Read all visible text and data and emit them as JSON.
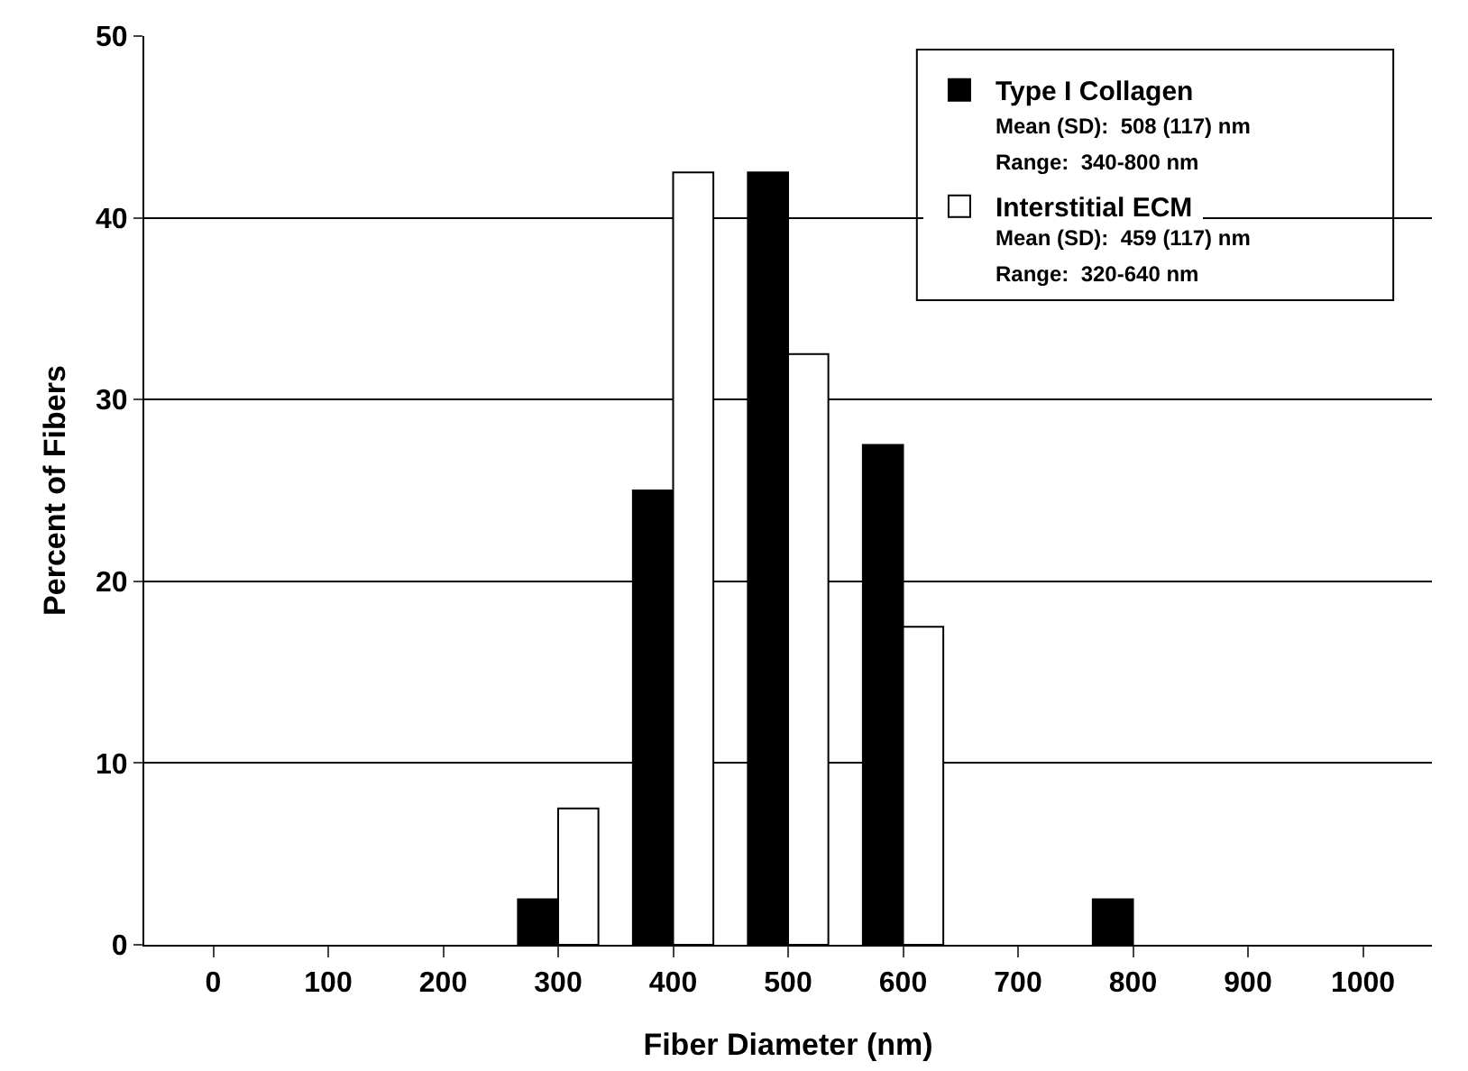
{
  "chart_data": {
    "type": "bar",
    "xlabel": "Fiber Diameter (nm)",
    "ylabel": "Percent of Fibers",
    "categories": [
      "0",
      "100",
      "200",
      "300",
      "400",
      "500",
      "600",
      "700",
      "800",
      "900",
      "1000"
    ],
    "series": [
      {
        "name": "Type I Collagen",
        "color": "#000000",
        "values": [
          0,
          0,
          0,
          2.5,
          25,
          42.5,
          27.5,
          0,
          2.5,
          0,
          0
        ]
      },
      {
        "name": "Interstitial ECM",
        "color": "#ffffff",
        "values": [
          0,
          0,
          0,
          7.5,
          42.5,
          32.5,
          17.5,
          0,
          0,
          0,
          0
        ]
      }
    ],
    "annotations": [
      "Mean (SD):  508 (117) nm",
      "Range:  340-800 nm",
      "Mean (SD):  459 (117) nm",
      "Range:  320-640 nm"
    ],
    "ylim": [
      0,
      50
    ],
    "yticks": [
      0,
      10,
      20,
      30,
      40,
      50
    ],
    "grid": "y",
    "legend": "top right"
  }
}
